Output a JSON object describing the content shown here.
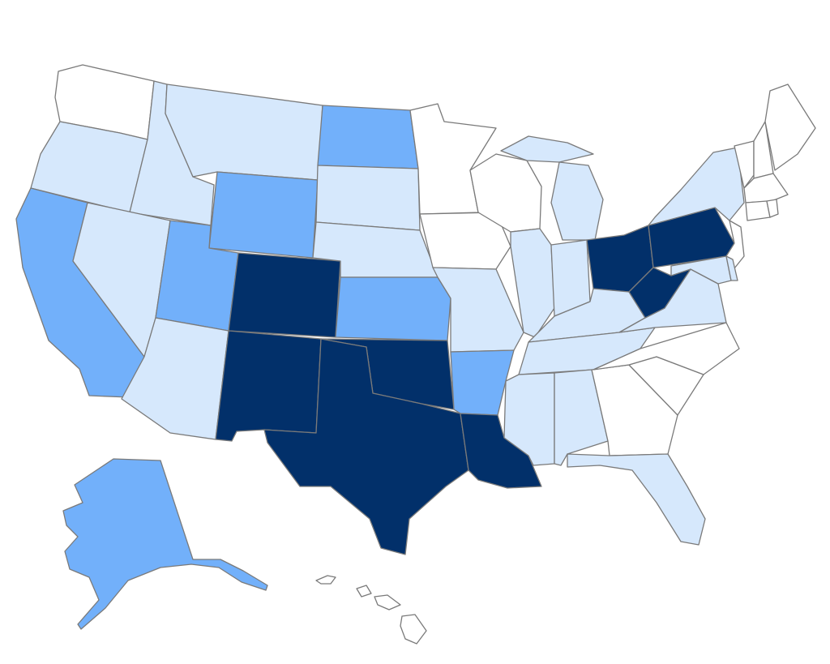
{
  "legend": {
    "tier0": "#ffffff",
    "tier1": "#d6e8fc",
    "tier2": "#72b0fa",
    "tier3": "#02306a"
  },
  "states": [
    {
      "id": "WA",
      "tier": 0
    },
    {
      "id": "OR",
      "tier": 1
    },
    {
      "id": "CA",
      "tier": 2
    },
    {
      "id": "ID",
      "tier": 1
    },
    {
      "id": "NV",
      "tier": 1
    },
    {
      "id": "MT",
      "tier": 1
    },
    {
      "id": "WY",
      "tier": 2
    },
    {
      "id": "UT",
      "tier": 2
    },
    {
      "id": "AZ",
      "tier": 1
    },
    {
      "id": "CO",
      "tier": 3
    },
    {
      "id": "NM",
      "tier": 3
    },
    {
      "id": "ND",
      "tier": 2
    },
    {
      "id": "SD",
      "tier": 1
    },
    {
      "id": "NE",
      "tier": 1
    },
    {
      "id": "KS",
      "tier": 2
    },
    {
      "id": "OK",
      "tier": 3
    },
    {
      "id": "TX",
      "tier": 3
    },
    {
      "id": "MN",
      "tier": 0
    },
    {
      "id": "IA",
      "tier": 0
    },
    {
      "id": "MO",
      "tier": 1
    },
    {
      "id": "AR",
      "tier": 2
    },
    {
      "id": "LA",
      "tier": 3
    },
    {
      "id": "WI",
      "tier": 0
    },
    {
      "id": "IL",
      "tier": 1
    },
    {
      "id": "MI",
      "tier": 1
    },
    {
      "id": "IN",
      "tier": 1
    },
    {
      "id": "OH",
      "tier": 3
    },
    {
      "id": "KY",
      "tier": 1
    },
    {
      "id": "TN",
      "tier": 1
    },
    {
      "id": "MS",
      "tier": 1
    },
    {
      "id": "AL",
      "tier": 1
    },
    {
      "id": "GA",
      "tier": 0
    },
    {
      "id": "FL",
      "tier": 1
    },
    {
      "id": "SC",
      "tier": 0
    },
    {
      "id": "NC",
      "tier": 0
    },
    {
      "id": "VA",
      "tier": 1
    },
    {
      "id": "WV",
      "tier": 3
    },
    {
      "id": "PA",
      "tier": 3
    },
    {
      "id": "NY",
      "tier": 1
    },
    {
      "id": "MD",
      "tier": 1
    },
    {
      "id": "DE",
      "tier": 1
    },
    {
      "id": "NJ",
      "tier": 0
    },
    {
      "id": "CT",
      "tier": 0
    },
    {
      "id": "RI",
      "tier": 0
    },
    {
      "id": "MA",
      "tier": 0
    },
    {
      "id": "VT",
      "tier": 0
    },
    {
      "id": "NH",
      "tier": 0
    },
    {
      "id": "ME",
      "tier": 0
    },
    {
      "id": "AK",
      "tier": 2
    },
    {
      "id": "HI",
      "tier": 0
    }
  ]
}
